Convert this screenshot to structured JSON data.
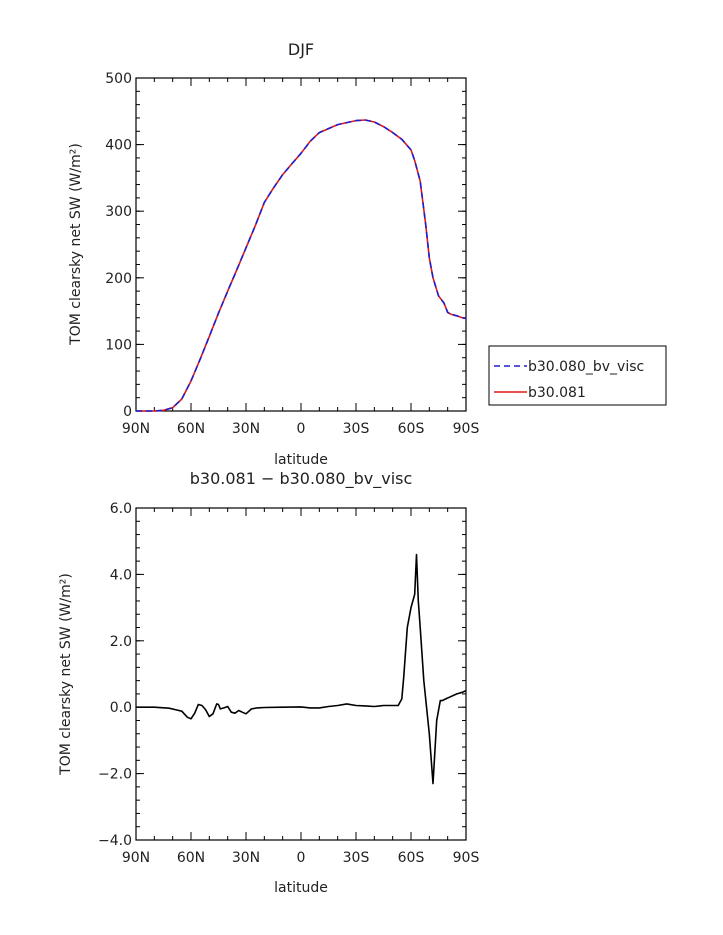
{
  "chart_data": [
    {
      "type": "line",
      "title": "DJF",
      "xlabel": "latitude",
      "ylabel": "TOM clearsky net SW (W/m²)",
      "xlim": [
        -90,
        90
      ],
      "ylim": [
        0,
        500
      ],
      "xticks": [
        -90,
        -60,
        -30,
        0,
        30,
        60,
        90
      ],
      "xtick_labels": [
        "90N",
        "60N",
        "30N",
        "0",
        "30S",
        "60S",
        "90S"
      ],
      "yticks": [
        0,
        100,
        200,
        300,
        400,
        500
      ],
      "ytick_labels": [
        "0",
        "100",
        "200",
        "300",
        "400",
        "500"
      ],
      "grid": false,
      "legend": "right",
      "series": [
        {
          "name": "b30.080_bv_visc",
          "color": "#1f1fcf",
          "dash": "dashed",
          "x": [
            -90,
            -80,
            -75,
            -70,
            -65,
            -60,
            -55,
            -50,
            -45,
            -40,
            -35,
            -30,
            -25,
            -20,
            -15,
            -10,
            -5,
            0,
            5,
            10,
            15,
            20,
            25,
            30,
            35,
            40,
            45,
            50,
            55,
            60,
            62,
            65,
            68,
            70,
            72,
            75,
            78,
            80,
            82,
            85,
            88,
            90
          ],
          "y": [
            0,
            0,
            1,
            5,
            18,
            45,
            78,
            112,
            147,
            180,
            212,
            245,
            278,
            313,
            335,
            355,
            371,
            387,
            405,
            418,
            424,
            430,
            433,
            436,
            437,
            434,
            427,
            418,
            408,
            392,
            376,
            345,
            280,
            230,
            200,
            173,
            162,
            148,
            145,
            143,
            140,
            139
          ]
        },
        {
          "name": "b30.081",
          "color": "#e01818",
          "dash": "solid",
          "x": [
            -90,
            -80,
            -75,
            -70,
            -65,
            -60,
            -55,
            -50,
            -45,
            -40,
            -35,
            -30,
            -25,
            -20,
            -15,
            -10,
            -5,
            0,
            5,
            10,
            15,
            20,
            25,
            30,
            35,
            40,
            45,
            50,
            55,
            60,
            62,
            65,
            68,
            70,
            72,
            75,
            78,
            80,
            82,
            85,
            88,
            90
          ],
          "y": [
            0,
            0,
            1,
            5,
            18,
            45,
            78,
            112,
            147,
            180,
            212,
            245,
            278,
            313,
            335,
            355,
            371,
            387,
            405,
            418,
            424,
            430,
            433,
            436,
            437,
            434,
            427,
            418,
            408,
            392,
            376,
            345,
            280,
            230,
            200,
            173,
            162,
            148,
            145,
            143,
            140,
            139
          ]
        }
      ]
    },
    {
      "type": "line",
      "title": "b30.081 − b30.080_bv_visc",
      "xlabel": "latitude",
      "ylabel": "TOM clearsky net SW (W/m²)",
      "xlim": [
        -90,
        90
      ],
      "ylim": [
        -4,
        6
      ],
      "xticks": [
        -90,
        -60,
        -30,
        0,
        30,
        60,
        90
      ],
      "xtick_labels": [
        "90N",
        "60N",
        "30N",
        "0",
        "30S",
        "60S",
        "90S"
      ],
      "yticks": [
        -4,
        -2,
        0,
        2,
        4,
        6
      ],
      "ytick_labels": [
        "−4.0",
        "−2.0",
        "0.0",
        "2.0",
        "4.0",
        "6.0"
      ],
      "grid": false,
      "series": [
        {
          "color": "#000000",
          "dash": "solid",
          "x": [
            -90,
            -80,
            -72,
            -68,
            -65,
            -62,
            -60,
            -58,
            -56,
            -54,
            -52,
            -50,
            -48,
            -46,
            -45,
            -44,
            -42,
            -40,
            -38,
            -36,
            -34,
            -32,
            -30,
            -27,
            -24,
            -20,
            -10,
            0,
            5,
            10,
            15,
            20,
            25,
            30,
            35,
            40,
            45,
            50,
            53,
            55,
            56,
            58,
            60,
            62,
            63,
            64,
            65,
            67,
            70,
            72,
            74,
            76,
            77,
            79,
            81,
            85,
            88,
            90
          ],
          "y": [
            0,
            0,
            -0.03,
            -0.08,
            -0.12,
            -0.3,
            -0.35,
            -0.18,
            0.08,
            0.05,
            -0.08,
            -0.28,
            -0.2,
            0.1,
            0.08,
            -0.05,
            -0.02,
            0.02,
            -0.15,
            -0.18,
            -0.1,
            -0.15,
            -0.2,
            -0.05,
            -0.02,
            -0.01,
            0.0,
            0.01,
            -0.02,
            -0.02,
            0.02,
            0.05,
            0.1,
            0.05,
            0.04,
            0.02,
            0.05,
            0.05,
            0.05,
            0.25,
            0.9,
            2.4,
            3.0,
            3.4,
            4.6,
            3.2,
            2.4,
            0.8,
            -0.8,
            -2.3,
            -0.4,
            0.2,
            0.2,
            0.25,
            0.3,
            0.4,
            0.45,
            0.5
          ]
        }
      ]
    }
  ]
}
